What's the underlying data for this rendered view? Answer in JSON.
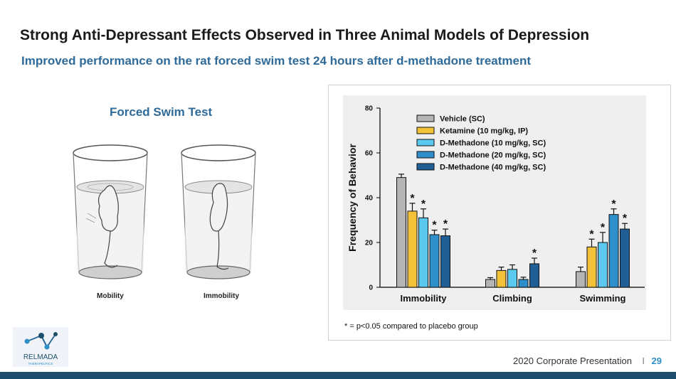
{
  "slide": {
    "title": "Strong Anti-Depressant Effects Observed in Three Animal Models of Depression",
    "subtitle": "Improved performance on the rat forced swim test 24 hours after d-methadone treatment",
    "illustration_title": "Forced Swim Test",
    "illustration_labels": [
      "Mobility",
      "Immobility"
    ],
    "footnote": "*  = p<0.05 compared to placebo group",
    "footer_text": "2020 Corporate Presentation",
    "footer_separator": "I",
    "page_number": "29",
    "logo_text": "RELMADA",
    "logo_subtext": "THERAPEUTICS"
  },
  "colors": {
    "title": "#1a1a1a",
    "accent_blue": "#2f6b9a",
    "footer_bar": "#1d4e6b",
    "page_number": "#2f8fc7"
  },
  "chart_data": {
    "type": "bar",
    "title": "",
    "xlabel": "",
    "ylabel": "Frequency of Behavior",
    "ylim": [
      0,
      80
    ],
    "yticks": [
      0,
      20,
      40,
      60,
      80
    ],
    "categories": [
      "Immobility",
      "Climbing",
      "Swimming"
    ],
    "legend_position": "top",
    "series": [
      {
        "name": "Vehicle (SC)",
        "color": "#b4b4b4",
        "values": [
          49,
          3.5,
          7
        ],
        "errors": [
          1.5,
          0.8,
          2
        ],
        "significant": [
          false,
          false,
          false
        ]
      },
      {
        "name": "Ketamine (10 mg/kg, IP)",
        "color": "#f4c238",
        "values": [
          34,
          7.5,
          18
        ],
        "errors": [
          3.5,
          1.5,
          3.5
        ],
        "significant": [
          true,
          false,
          true
        ]
      },
      {
        "name": "D-Methadone (10 mg/kg, SC)",
        "color": "#5bc8f0",
        "values": [
          31,
          8,
          20
        ],
        "errors": [
          4,
          2,
          4.5
        ],
        "significant": [
          true,
          false,
          true
        ]
      },
      {
        "name": "D-Methadone (20 mg/kg, SC)",
        "color": "#2f8fca",
        "values": [
          23.5,
          3.5,
          32.5
        ],
        "errors": [
          2,
          1,
          2.5
        ],
        "significant": [
          true,
          false,
          true
        ]
      },
      {
        "name": "D-Methadone (40 mg/kg, SC)",
        "color": "#205f95",
        "values": [
          23,
          10.5,
          26
        ],
        "errors": [
          3,
          2.5,
          2.5
        ],
        "significant": [
          true,
          true,
          true
        ]
      }
    ],
    "significance_marker": "*",
    "grid": false
  }
}
